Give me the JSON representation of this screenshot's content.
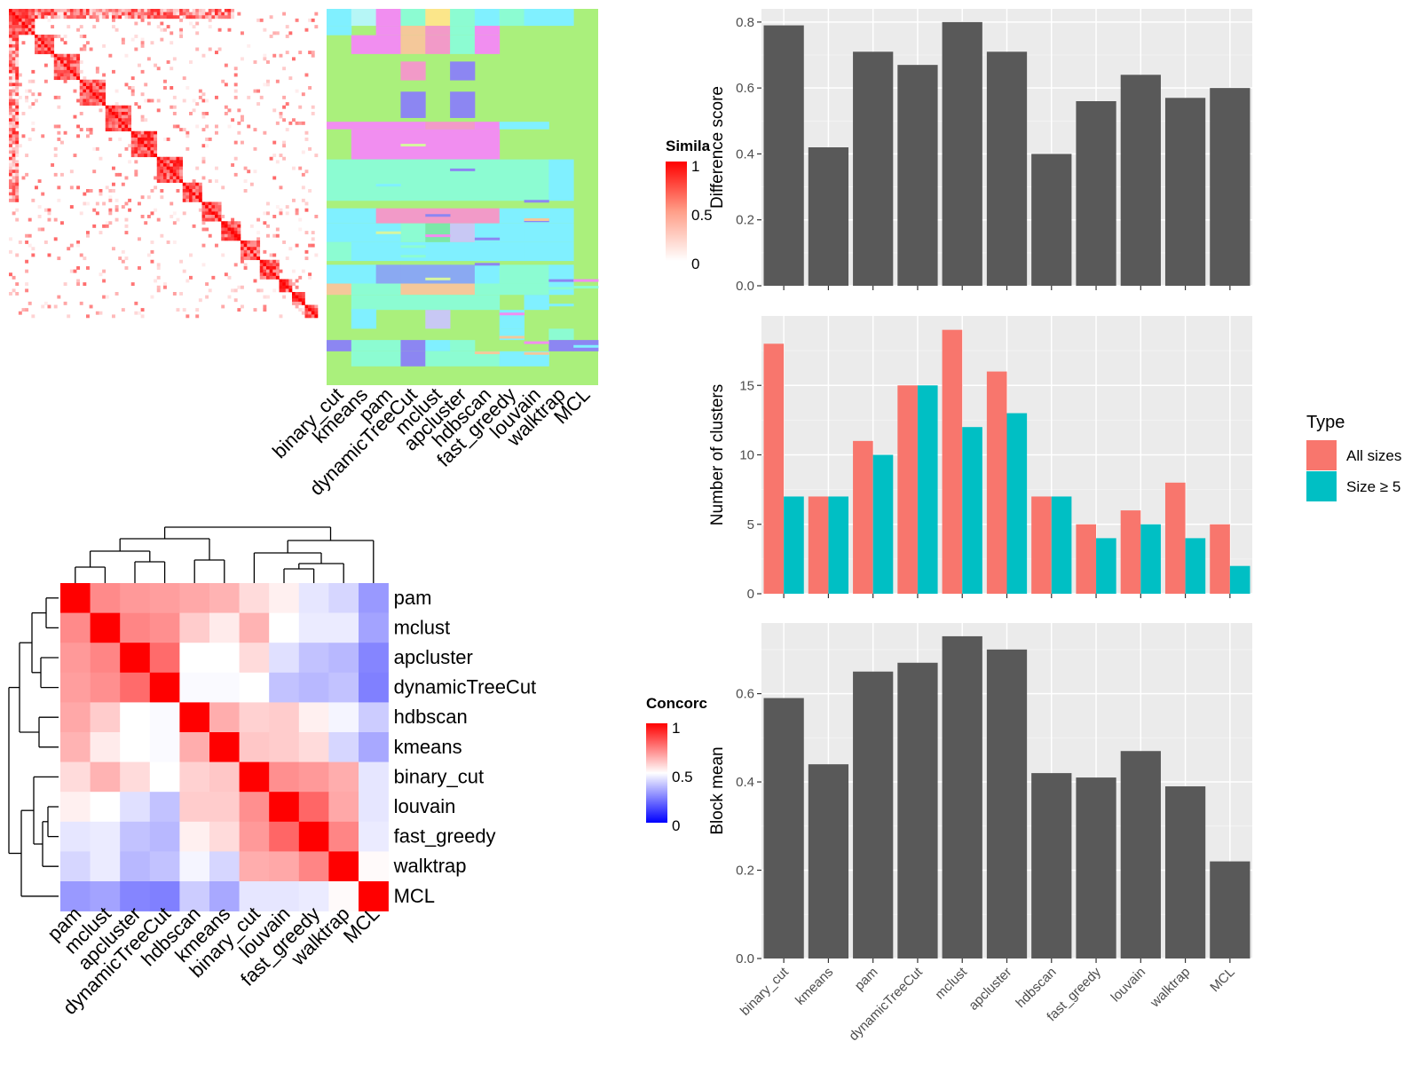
{
  "colors": {
    "similarity_high": "#ff0000",
    "similarity_low": "#ffffff",
    "concordance_high": "#ff0000",
    "concordance_mid": "#ffffff",
    "concordance_low": "#0000ff",
    "bar_fill": "#595959",
    "panel_bg": "#ebebeb",
    "all_sizes": "#f8766d",
    "size5": "#00bfc4"
  },
  "heatmap_top": {
    "legend_title": "Simila",
    "legend_ticks": [
      "1",
      "0.5",
      "0"
    ],
    "methods": [
      "binary_cut",
      "kmeans",
      "pam",
      "dynamicTreeCut",
      "mclust",
      "apcluster",
      "hdbscan",
      "fast_greedy",
      "louvain",
      "walktrap",
      "MCL"
    ]
  },
  "concordance": {
    "legend_title": "Concorc",
    "legend_ticks": [
      "1",
      "0.5",
      "0"
    ],
    "rows": [
      "pam",
      "mclust",
      "apcluster",
      "dynamicTreeCut",
      "hdbscan",
      "kmeans",
      "binary_cut",
      "louvain",
      "fast_greedy",
      "walktrap",
      "MCL"
    ],
    "cols": [
      "pam",
      "mclust",
      "apcluster",
      "dynamicTreeCut",
      "hdbscan",
      "kmeans",
      "binary_cut",
      "louvain",
      "fast_greedy",
      "walktrap",
      "MCL"
    ],
    "values": [
      [
        1.0,
        0.73,
        0.7,
        0.69,
        0.67,
        0.65,
        0.57,
        0.53,
        0.45,
        0.42,
        0.3
      ],
      [
        0.73,
        1.0,
        0.74,
        0.72,
        0.6,
        0.54,
        0.65,
        0.5,
        0.46,
        0.46,
        0.32
      ],
      [
        0.7,
        0.74,
        1.0,
        0.79,
        0.5,
        0.5,
        0.57,
        0.44,
        0.38,
        0.36,
        0.26
      ],
      [
        0.69,
        0.72,
        0.79,
        1.0,
        0.49,
        0.49,
        0.5,
        0.38,
        0.36,
        0.38,
        0.25
      ],
      [
        0.67,
        0.6,
        0.5,
        0.49,
        1.0,
        0.66,
        0.59,
        0.6,
        0.53,
        0.48,
        0.4
      ],
      [
        0.65,
        0.54,
        0.5,
        0.49,
        0.66,
        1.0,
        0.61,
        0.6,
        0.57,
        0.42,
        0.33
      ],
      [
        0.57,
        0.65,
        0.57,
        0.5,
        0.59,
        0.61,
        1.0,
        0.72,
        0.7,
        0.66,
        0.45
      ],
      [
        0.53,
        0.5,
        0.44,
        0.38,
        0.6,
        0.6,
        0.72,
        1.0,
        0.8,
        0.67,
        0.45
      ],
      [
        0.45,
        0.46,
        0.38,
        0.36,
        0.53,
        0.57,
        0.7,
        0.8,
        1.0,
        0.74,
        0.46
      ],
      [
        0.42,
        0.46,
        0.36,
        0.38,
        0.48,
        0.42,
        0.66,
        0.67,
        0.74,
        1.0,
        0.51
      ],
      [
        0.3,
        0.32,
        0.26,
        0.25,
        0.4,
        0.33,
        0.45,
        0.45,
        0.46,
        0.51,
        1.0
      ]
    ]
  },
  "chart_data": [
    {
      "type": "bar",
      "categories": [
        "binary_cut",
        "kmeans",
        "pam",
        "dynamicTreeCut",
        "mclust",
        "apcluster",
        "hdbscan",
        "fast_greedy",
        "louvain",
        "walktrap",
        "MCL"
      ],
      "values": [
        0.79,
        0.42,
        0.71,
        0.67,
        0.8,
        0.71,
        0.4,
        0.56,
        0.64,
        0.57,
        0.6
      ],
      "ylabel": "Difference score",
      "ylim": [
        0,
        0.84
      ],
      "yticks": [
        "0.0",
        "0.2",
        "0.4",
        "0.6",
        "0.8"
      ],
      "grid": true
    },
    {
      "type": "bar",
      "categories": [
        "binary_cut",
        "kmeans",
        "pam",
        "dynamicTreeCut",
        "mclust",
        "apcluster",
        "hdbscan",
        "fast_greedy",
        "louvain",
        "walktrap",
        "MCL"
      ],
      "series": [
        {
          "name": "All sizes",
          "values": [
            18,
            7,
            11,
            15,
            19,
            16,
            7,
            5,
            6,
            8,
            5
          ]
        },
        {
          "name": "Size ≥ 5",
          "values": [
            7,
            7,
            10,
            15,
            12,
            13,
            7,
            4,
            5,
            4,
            2
          ]
        }
      ],
      "ylabel": "Number of clusters",
      "ylim": [
        0,
        20
      ],
      "yticks": [
        "0",
        "5",
        "10",
        "15"
      ],
      "legend_title": "Type",
      "legend_position": "right",
      "grid": true
    },
    {
      "type": "bar",
      "categories": [
        "binary_cut",
        "kmeans",
        "pam",
        "dynamicTreeCut",
        "mclust",
        "apcluster",
        "hdbscan",
        "fast_greedy",
        "louvain",
        "walktrap",
        "MCL"
      ],
      "values": [
        0.59,
        0.44,
        0.65,
        0.67,
        0.73,
        0.7,
        0.42,
        0.41,
        0.47,
        0.39,
        0.22
      ],
      "ylabel": "Block mean",
      "ylim": [
        0,
        0.76
      ],
      "yticks": [
        "0.0",
        "0.2",
        "0.4",
        "0.6"
      ],
      "grid": true
    }
  ]
}
